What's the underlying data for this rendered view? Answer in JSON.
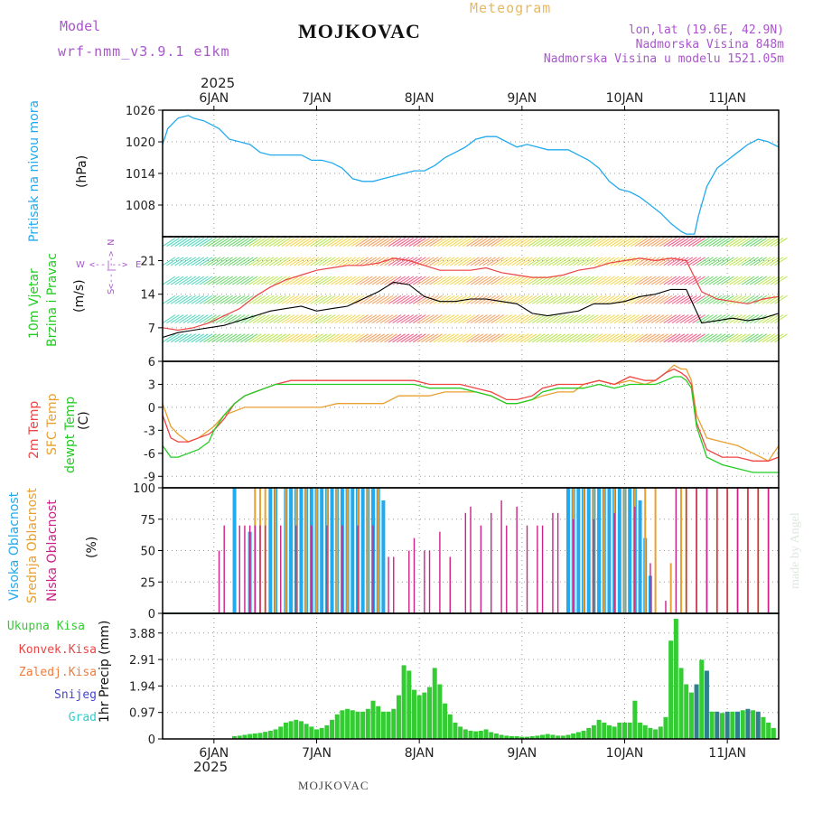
{
  "header": {
    "model_label": "Model",
    "model_name": "wrf-nmm_v3.9.1 e1km",
    "station": "MOJKOVAC",
    "meteogram": "Meteogram",
    "lonlat": "lon,lat (19.6E, 42.9N)",
    "elevation": "Nadmorska Visina 848m",
    "model_elevation": "Nadmorska Visina u modelu 1521.05m",
    "year": "2025",
    "footer_station": "MOJKOVAC",
    "watermark": "made by Angel"
  },
  "colors": {
    "pressure": "#22aaee",
    "wind_mean": "#000000",
    "gust": "#ee4444",
    "t2m": "#ee4444",
    "sfc": "#e8a030",
    "dewpt": "#22cc22",
    "cloud_high": "#22aaee",
    "cloud_mid": "#e8a030",
    "cloud_low": "#cc2288",
    "total_precip": "#33cc33",
    "snow": "#4444cc",
    "hail": "#33cccc",
    "grid": "#999999",
    "model_text": "#aa55cc",
    "meteogram_text": "#e8b860"
  },
  "chart_data": [
    {
      "type": "line",
      "panel": "pressure",
      "ylabel_left": "Pritisak na nivou mora",
      "ylabel": "(hPa)",
      "x_ticks": [
        "6JAN",
        "7JAN",
        "8JAN",
        "9JAN",
        "10JAN",
        "11JAN"
      ],
      "yticks": [
        1008,
        1014,
        1020,
        1026
      ],
      "ylim": [
        1002,
        1026
      ],
      "x": [
        -0.5,
        -0.45,
        -0.35,
        -0.25,
        -0.2,
        -0.1,
        -0.05,
        0.05,
        0.15,
        0.25,
        0.35,
        0.45,
        0.55,
        0.65,
        0.75,
        0.85,
        0.95,
        1.05,
        1.15,
        1.25,
        1.35,
        1.45,
        1.55,
        1.65,
        1.75,
        1.85,
        1.95,
        2.05,
        2.15,
        2.25,
        2.35,
        2.45,
        2.55,
        2.65,
        2.75,
        2.85,
        2.95,
        3.05,
        3.15,
        3.25,
        3.35,
        3.45,
        3.55,
        3.65,
        3.75,
        3.85,
        3.95,
        4.05,
        4.15,
        4.25,
        4.35,
        4.45,
        4.55,
        4.6,
        4.68,
        4.72,
        4.8,
        4.9,
        5.0,
        5.1,
        5.2,
        5.3,
        5.4,
        5.5
      ],
      "series": [
        {
          "values": [
            1019.5,
            1022.5,
            1024.5,
            1025,
            1024.5,
            1024,
            1023.5,
            1022.5,
            1020.5,
            1020,
            1019.5,
            1018,
            1017.5,
            1017.5,
            1017.5,
            1017.5,
            1016.5,
            1016.5,
            1016,
            1015,
            1013,
            1012.5,
            1012.5,
            1013,
            1013.5,
            1014,
            1014.5,
            1014.5,
            1015.5,
            1017,
            1018,
            1019,
            1020.5,
            1021,
            1021,
            1020,
            1019,
            1019.5,
            1019,
            1018.5,
            1018.5,
            1018.5,
            1017.5,
            1016.5,
            1015,
            1012.5,
            1011,
            1010.5,
            1009.5,
            1008,
            1006.5,
            1004.5,
            1003,
            1002.5,
            1002.5,
            1006,
            1011.5,
            1015,
            1016.5,
            1018,
            1019.5,
            1020.5,
            1020,
            1019
          ]
        }
      ]
    },
    {
      "type": "line",
      "panel": "wind",
      "ylabel_left": [
        "10m Vjetar",
        "Brzina i Pravac"
      ],
      "ylabel": "(m/s)",
      "compass": [
        "W",
        "<--|-->",
        "E",
        "N",
        "<--|-->",
        "S"
      ],
      "yticks": [
        7,
        14,
        21
      ],
      "ylim": [
        0,
        26
      ],
      "x": [
        -0.5,
        -0.35,
        -0.2,
        -0.05,
        0.1,
        0.25,
        0.4,
        0.55,
        0.7,
        0.85,
        1.0,
        1.15,
        1.3,
        1.45,
        1.6,
        1.75,
        1.9,
        2.05,
        2.2,
        2.35,
        2.5,
        2.65,
        2.8,
        2.95,
        3.1,
        3.25,
        3.4,
        3.55,
        3.7,
        3.85,
        4.0,
        4.15,
        4.3,
        4.45,
        4.6,
        4.75,
        4.9,
        5.05,
        5.2,
        5.35,
        5.5
      ],
      "series": [
        {
          "name": "mean",
          "values": [
            5,
            6,
            6.5,
            7,
            7.5,
            8.5,
            9.5,
            10.5,
            11,
            11.5,
            10.5,
            11,
            11.5,
            13,
            14.5,
            16.5,
            16,
            13.5,
            12.5,
            12.5,
            13,
            13,
            12.5,
            12,
            10,
            9.5,
            10,
            10.5,
            12,
            12,
            12.5,
            13.5,
            14,
            15,
            15,
            8,
            8.5,
            9,
            8.5,
            9,
            10
          ]
        },
        {
          "name": "gust",
          "values": [
            7,
            6.5,
            7,
            8,
            9.5,
            11,
            13.5,
            15.5,
            17,
            18,
            19,
            19.5,
            20,
            20,
            20.5,
            21.5,
            21,
            20,
            19,
            19,
            19,
            19.5,
            18.5,
            18,
            17.5,
            17.5,
            18,
            19,
            19.5,
            20.5,
            21,
            21.5,
            21,
            21.5,
            21,
            14.5,
            13,
            12.5,
            12,
            13,
            13.5
          ]
        }
      ]
    },
    {
      "type": "line",
      "panel": "temperature",
      "ylabel_left": [
        "2m Temp",
        "SFC Temp",
        "dewpt Temp"
      ],
      "ylabel": "(C)",
      "yticks": [
        -9,
        -6,
        -3,
        0,
        3,
        6
      ],
      "ylim": [
        -10.5,
        6
      ],
      "x": [
        -0.5,
        -0.42,
        -0.35,
        -0.25,
        -0.15,
        -0.05,
        0.0,
        0.1,
        0.2,
        0.3,
        0.4,
        0.5,
        0.6,
        0.75,
        0.9,
        1.05,
        1.2,
        1.35,
        1.5,
        1.65,
        1.8,
        1.95,
        2.1,
        2.25,
        2.4,
        2.55,
        2.7,
        2.85,
        2.95,
        3.1,
        3.2,
        3.35,
        3.5,
        3.6,
        3.75,
        3.9,
        4.05,
        4.2,
        4.3,
        4.4,
        4.48,
        4.55,
        4.6,
        4.65,
        4.7,
        4.8,
        4.95,
        5.1,
        5.25,
        5.4,
        5.5
      ],
      "series": [
        {
          "name": "2m Temp",
          "values": [
            -1,
            -4,
            -4.5,
            -4.5,
            -4,
            -3.5,
            -3,
            -1.5,
            0.5,
            1.5,
            2,
            2.5,
            3,
            3.5,
            3.5,
            3.5,
            3.5,
            3.5,
            3.5,
            3.5,
            3.5,
            3.5,
            3,
            3,
            3,
            2.5,
            2,
            1,
            1,
            1.5,
            2.5,
            3,
            3,
            3,
            3.5,
            3,
            4,
            3.5,
            3.5,
            4.5,
            5,
            4.5,
            4,
            3,
            -2,
            -5.5,
            -6.5,
            -6.5,
            -7,
            -7,
            -6.5
          ]
        },
        {
          "name": "SFC Temp",
          "values": [
            0.5,
            -2.5,
            -3.5,
            -4.5,
            -4,
            -3,
            -2.5,
            -1,
            -0.5,
            0,
            0,
            0,
            0,
            0,
            0,
            0,
            0.5,
            0.5,
            0.5,
            0.5,
            1.5,
            1.5,
            1.5,
            2,
            2,
            2,
            1.5,
            0.5,
            0.5,
            1,
            1.5,
            2,
            2,
            3,
            3.5,
            3,
            3.5,
            3,
            3.5,
            4.5,
            5.5,
            5,
            5,
            3.5,
            -1,
            -4,
            -4.5,
            -5,
            -6,
            -7,
            -5
          ]
        },
        {
          "name": "dewpt Temp",
          "values": [
            -5,
            -6.5,
            -6.5,
            -6,
            -5.5,
            -4.5,
            -3,
            -1,
            0.5,
            1.5,
            2,
            2.5,
            3,
            3,
            3,
            3,
            3,
            3,
            3,
            3,
            3,
            3,
            2.5,
            2.5,
            2.5,
            2,
            1.5,
            0.5,
            0.5,
            1,
            2,
            2.5,
            2.5,
            2.5,
            3,
            2.5,
            3,
            3,
            3,
            3.5,
            4,
            4,
            3.5,
            2.5,
            -2.5,
            -6.5,
            -7.5,
            -8,
            -8.5,
            -8.5,
            -8.5
          ]
        }
      ]
    },
    {
      "type": "bar",
      "panel": "cloud",
      "ylabel_left": [
        "Visoka Oblacnost",
        "Srednja Oblacnost",
        "Niska Oblacnost"
      ],
      "ylabel": "(%)",
      "yticks": [
        0,
        25,
        50,
        75,
        100
      ],
      "ylim": [
        0,
        100
      ],
      "series": [
        {
          "name": "Visoka Oblacnost",
          "x": [
            0.2,
            0.35,
            0.55,
            0.6,
            0.7,
            0.75,
            0.8,
            0.85,
            0.9,
            0.95,
            1.0,
            1.05,
            1.1,
            1.15,
            1.2,
            1.25,
            1.3,
            1.35,
            1.4,
            1.45,
            1.5,
            1.55,
            1.6,
            1.65,
            3.45,
            3.5,
            3.55,
            3.6,
            3.65,
            3.7,
            3.75,
            3.8,
            3.85,
            3.9,
            3.95,
            4.0,
            4.05,
            4.1,
            4.15,
            4.2,
            4.25
          ],
          "values": [
            100,
            65,
            100,
            100,
            100,
            100,
            100,
            100,
            100,
            100,
            100,
            100,
            100,
            100,
            100,
            100,
            100,
            100,
            100,
            100,
            100,
            100,
            100,
            90,
            100,
            100,
            100,
            100,
            100,
            100,
            100,
            100,
            100,
            100,
            100,
            100,
            100,
            100,
            90,
            60,
            30
          ]
        },
        {
          "name": "Srednja Oblacnost",
          "x": [
            0.4,
            0.45,
            0.5,
            0.6,
            0.7,
            0.8,
            0.9,
            1.0,
            1.1,
            1.2,
            1.3,
            1.4,
            1.5,
            1.6,
            3.5,
            3.6,
            3.7,
            3.8,
            3.9,
            4.0,
            4.1,
            4.2,
            4.3,
            4.45,
            4.55,
            4.6,
            4.7,
            4.8,
            4.9,
            5.0,
            5.1,
            5.2,
            5.3,
            5.4
          ],
          "values": [
            100,
            100,
            100,
            100,
            100,
            100,
            100,
            100,
            100,
            100,
            100,
            100,
            100,
            100,
            100,
            100,
            100,
            100,
            100,
            100,
            100,
            100,
            100,
            40,
            100,
            100,
            100,
            100,
            100,
            100,
            100,
            100,
            100,
            100
          ]
        },
        {
          "name": "Niska Oblacnost",
          "x": [
            0.05,
            0.1,
            0.25,
            0.3,
            0.35,
            0.4,
            0.45,
            0.5,
            0.65,
            0.8,
            0.95,
            1.1,
            1.25,
            1.4,
            1.55,
            1.7,
            1.75,
            1.9,
            1.95,
            2.05,
            2.1,
            2.2,
            2.3,
            2.45,
            2.5,
            2.6,
            2.7,
            2.8,
            2.85,
            2.95,
            3.05,
            3.15,
            3.2,
            3.3,
            3.35,
            3.5,
            3.7,
            3.9,
            4.1,
            4.25,
            4.4,
            4.5,
            4.6,
            4.7,
            4.8,
            4.9,
            5.0,
            5.1,
            5.2,
            5.3,
            5.4
          ],
          "values": [
            50,
            70,
            70,
            70,
            70,
            70,
            70,
            70,
            70,
            70,
            70,
            70,
            70,
            70,
            70,
            45,
            45,
            50,
            60,
            50,
            50,
            65,
            45,
            80,
            85,
            70,
            80,
            90,
            70,
            85,
            70,
            70,
            70,
            80,
            80,
            75,
            75,
            80,
            85,
            40,
            10,
            100,
            100,
            100,
            100,
            100,
            100,
            100,
            100,
            100,
            100
          ]
        }
      ]
    },
    {
      "type": "bar",
      "panel": "precip",
      "ylabel": "1hr Precip (mm)",
      "legend": [
        "Ukupna Kisa",
        "Konvek.Kisa",
        "Zaledj.Kisa",
        "Snijeg",
        "Grad"
      ],
      "yticks": [
        0,
        0.97,
        1.94,
        2.91,
        3.88
      ],
      "ylim": [
        0,
        4.6
      ],
      "x_ticks": [
        "6JAN",
        "7JAN",
        "8JAN",
        "9JAN",
        "10JAN",
        "11JAN"
      ],
      "bar_x_start": 0.2,
      "bar_x_step": 0.05,
      "values": [
        0.1,
        0.12,
        0.15,
        0.18,
        0.2,
        0.22,
        0.26,
        0.3,
        0.35,
        0.45,
        0.6,
        0.65,
        0.7,
        0.65,
        0.55,
        0.45,
        0.35,
        0.4,
        0.5,
        0.7,
        0.9,
        1.05,
        1.1,
        1.05,
        1.0,
        1.0,
        1.1,
        1.4,
        1.2,
        1.0,
        1.0,
        1.1,
        1.6,
        2.7,
        2.5,
        1.8,
        1.6,
        1.7,
        1.9,
        2.6,
        2.0,
        1.3,
        0.9,
        0.6,
        0.45,
        0.35,
        0.3,
        0.28,
        0.3,
        0.35,
        0.25,
        0.2,
        0.15,
        0.12,
        0.1,
        0.1,
        0.08,
        0.08,
        0.1,
        0.12,
        0.15,
        0.18,
        0.15,
        0.12,
        0.12,
        0.15,
        0.2,
        0.25,
        0.3,
        0.4,
        0.5,
        0.7,
        0.6,
        0.5,
        0.45,
        0.6,
        0.6,
        0.6,
        1.4,
        0.6,
        0.5,
        0.4,
        0.35,
        0.45,
        0.8,
        3.6,
        4.4,
        2.6,
        2.0,
        1.7,
        2.0,
        2.9,
        2.5,
        1.0,
        1.0,
        0.95,
        1.0,
        1.0,
        1.0,
        1.05,
        1.1,
        1.05,
        1.0,
        0.8,
        0.6,
        0.4,
        0.3,
        0.25
      ]
    }
  ]
}
